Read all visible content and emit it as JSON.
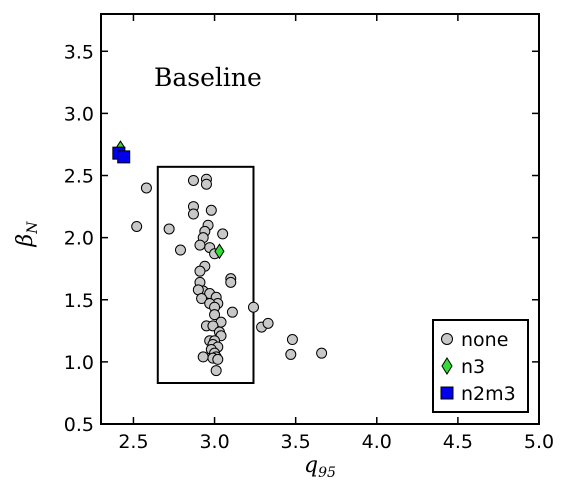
{
  "chart_data": {
    "type": "scatter",
    "title": "",
    "annotation": "Baseline",
    "xlabel": "q",
    "xlabel_sub": "95",
    "ylabel": "β",
    "ylabel_sub": "N",
    "xlim": [
      2.3,
      5.0
    ],
    "ylim": [
      0.5,
      3.8
    ],
    "xticks": [
      2.5,
      3.0,
      3.5,
      4.0,
      4.5,
      5.0
    ],
    "xtick_labels": [
      "2.5",
      "3.0",
      "3.5",
      "4.0",
      "4.5",
      "5.0"
    ],
    "yticks": [
      0.5,
      1.0,
      1.5,
      2.0,
      2.5,
      3.0,
      3.5
    ],
    "ytick_labels": [
      "0.5",
      "1.0",
      "1.5",
      "2.0",
      "2.5",
      "3.0",
      "3.5"
    ],
    "grid": false,
    "legend_position": "bottom-right",
    "highlight_box": {
      "x0": 2.65,
      "x1": 3.24,
      "y0": 0.83,
      "y1": 2.57
    },
    "series": [
      {
        "name": "none",
        "marker": "circle",
        "color": "#c8c8c8",
        "points": [
          [
            2.58,
            2.4
          ],
          [
            2.52,
            2.09
          ],
          [
            2.87,
            2.46
          ],
          [
            2.95,
            2.47
          ],
          [
            2.95,
            2.43
          ],
          [
            2.87,
            2.25
          ],
          [
            2.87,
            2.19
          ],
          [
            2.98,
            2.22
          ],
          [
            2.72,
            2.07
          ],
          [
            2.96,
            2.1
          ],
          [
            3.05,
            2.03
          ],
          [
            2.94,
            2.05
          ],
          [
            2.93,
            2.0
          ],
          [
            2.91,
            1.94
          ],
          [
            2.79,
            1.9
          ],
          [
            2.97,
            1.92
          ],
          [
            3.0,
            1.87
          ],
          [
            2.94,
            1.77
          ],
          [
            2.91,
            1.73
          ],
          [
            3.1,
            1.67
          ],
          [
            3.1,
            1.64
          ],
          [
            2.91,
            1.64
          ],
          [
            2.93,
            1.57
          ],
          [
            2.9,
            1.58
          ],
          [
            2.97,
            1.55
          ],
          [
            2.92,
            1.51
          ],
          [
            3.01,
            1.52
          ],
          [
            3.02,
            1.47
          ],
          [
            2.97,
            1.47
          ],
          [
            3.0,
            1.44
          ],
          [
            3.11,
            1.4
          ],
          [
            3.24,
            1.44
          ],
          [
            3.0,
            1.38
          ],
          [
            3.04,
            1.32
          ],
          [
            2.95,
            1.29
          ],
          [
            2.99,
            1.29
          ],
          [
            3.03,
            1.24
          ],
          [
            3.04,
            1.21
          ],
          [
            2.97,
            1.17
          ],
          [
            3.0,
            1.17
          ],
          [
            2.99,
            1.14
          ],
          [
            3.02,
            1.12
          ],
          [
            2.98,
            1.1
          ],
          [
            3.0,
            1.07
          ],
          [
            2.93,
            1.04
          ],
          [
            3.01,
            1.04
          ],
          [
            2.99,
            1.03
          ],
          [
            3.02,
            1.02
          ],
          [
            3.01,
            0.93
          ],
          [
            3.29,
            1.28
          ],
          [
            3.33,
            1.31
          ],
          [
            3.48,
            1.18
          ],
          [
            3.47,
            1.06
          ],
          [
            3.66,
            1.07
          ]
        ]
      },
      {
        "name": "n3",
        "marker": "diamond",
        "color": "#33dd33",
        "points": [
          [
            3.03,
            1.89
          ],
          [
            2.42,
            2.72
          ]
        ]
      },
      {
        "name": "n2m3",
        "marker": "square",
        "color": "#0000ee",
        "points": [
          [
            2.41,
            2.68
          ],
          [
            2.44,
            2.65
          ]
        ]
      }
    ]
  }
}
